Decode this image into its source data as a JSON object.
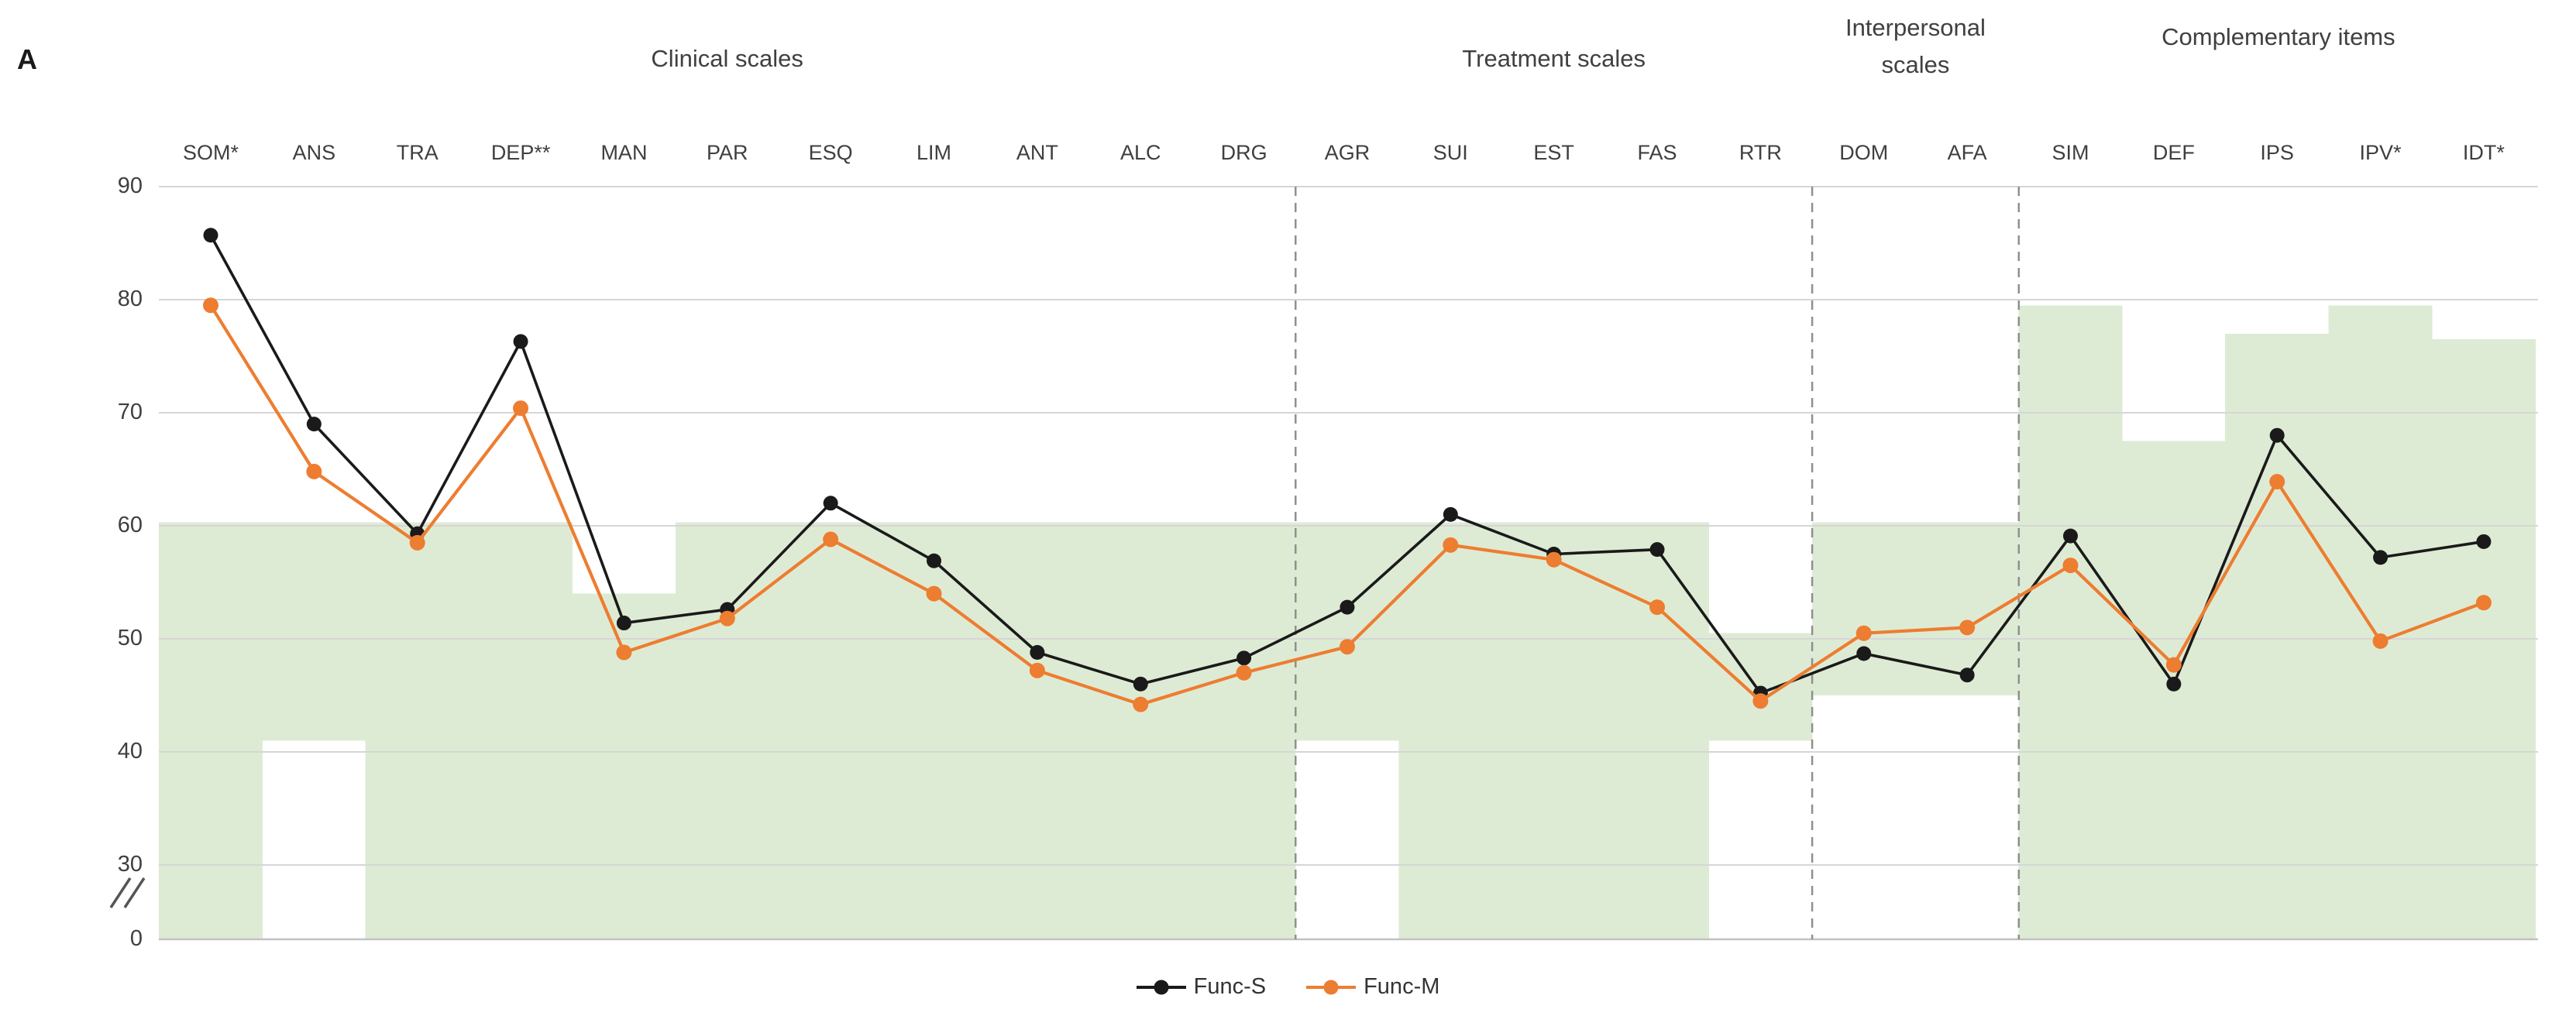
{
  "panel_label": "A",
  "colors": {
    "band_green": "#DEEBD4",
    "gridline": "#D6D6D6",
    "zero_axis": "#C2C2C2",
    "separator": "#8F8F8F",
    "text": "#404040",
    "series_black": "#1A1A1A",
    "series_orange": "#ED7D31"
  },
  "chart_data": {
    "type": "line",
    "categories": [
      "SOM*",
      "ANS",
      "TRA",
      "DEP**",
      "MAN",
      "PAR",
      "ESQ",
      "LIM",
      "ANT",
      "ALC",
      "DRG",
      "AGR",
      "SUI",
      "EST",
      "FAS",
      "RTR",
      "DOM",
      "AFA",
      "SIM",
      "DEF",
      "IPS",
      "IPV*",
      "IDT*"
    ],
    "series": [
      {
        "name": "Func-S",
        "color": "#1A1A1A",
        "values": [
          85.7,
          69.0,
          59.3,
          76.3,
          51.4,
          52.6,
          62.0,
          56.9,
          48.8,
          46.0,
          48.3,
          52.8,
          61.0,
          57.5,
          57.9,
          45.2,
          48.7,
          46.8,
          59.1,
          46.0,
          68.0,
          57.2,
          58.6
        ]
      },
      {
        "name": "Func-M",
        "color": "#ED7D31",
        "values": [
          79.5,
          64.8,
          58.5,
          70.4,
          48.8,
          51.8,
          58.8,
          54.0,
          47.2,
          44.2,
          47.0,
          49.3,
          58.3,
          57.0,
          52.8,
          44.5,
          50.5,
          51.0,
          56.5,
          47.7,
          63.9,
          49.8,
          53.2
        ]
      }
    ],
    "bands": {
      "description": "normative range shading per scale (T-scores)",
      "color": "#DEEBD4",
      "ranges": [
        [
          0,
          60.3
        ],
        [
          41,
          60.3
        ],
        [
          0,
          60.3
        ],
        [
          0,
          60.3
        ],
        [
          0,
          54
        ],
        [
          0,
          60.3
        ],
        [
          0,
          60.3
        ],
        [
          0,
          60.3
        ],
        [
          0,
          60.3
        ],
        [
          0,
          60.3
        ],
        [
          0,
          60.3
        ],
        [
          41,
          60.3
        ],
        [
          0,
          60.3
        ],
        [
          0,
          60.3
        ],
        [
          0,
          60.3
        ],
        [
          41,
          50.5
        ],
        [
          45,
          60.3
        ],
        [
          45,
          60.3
        ],
        [
          0,
          79.5
        ],
        [
          0,
          67.5
        ],
        [
          0,
          77
        ],
        [
          0,
          79.5
        ],
        [
          0,
          76.5
        ]
      ]
    },
    "sections": [
      {
        "label": "Clinical scales",
        "from": 0,
        "to": 10,
        "wrap": false
      },
      {
        "label": "Treatment scales",
        "from": 11,
        "to": 15,
        "wrap": false
      },
      {
        "label": "Interpersonal scales",
        "from": 16,
        "to": 17,
        "wrap": true
      },
      {
        "label": "Complementary items",
        "from": 18,
        "to": 22,
        "wrap": false
      }
    ],
    "separators_after": [
      10,
      15,
      17
    ],
    "y_ticks": [
      90,
      80,
      70,
      60,
      50,
      40,
      30,
      0
    ],
    "ylim": [
      0,
      90
    ],
    "axis_break_symbol": "//",
    "grid": true,
    "legend_position": "bottom-center",
    "legend": [
      "Func-S",
      "Func-M"
    ]
  }
}
